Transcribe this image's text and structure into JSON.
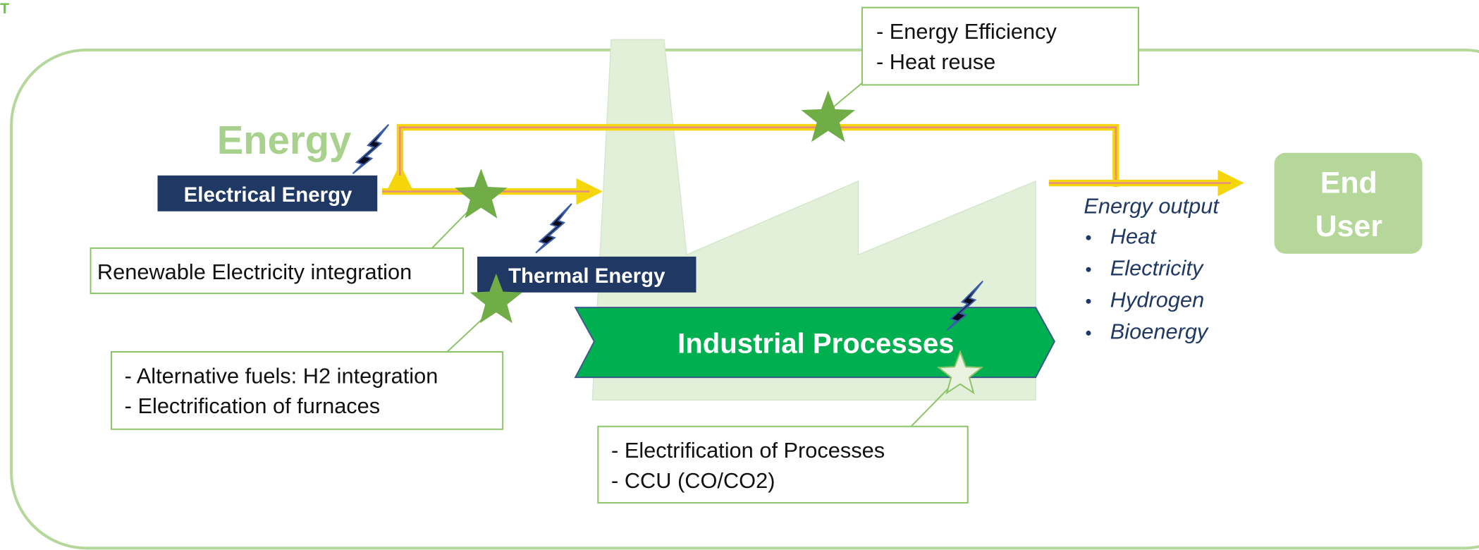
{
  "corner_mark": "T",
  "title": "Energy",
  "inputs": {
    "electrical": "Electrical Energy",
    "thermal": "Thermal Energy"
  },
  "process": "Industrial Processes",
  "end_user": [
    "End",
    "User"
  ],
  "output": {
    "heading": "Energy output",
    "items": [
      "Heat",
      "Electricity",
      "Hydrogen",
      "Bioenergy"
    ]
  },
  "callouts": {
    "efficiency": [
      "- Energy Efficiency",
      "- Heat reuse"
    ],
    "renewable": [
      "Renewable Electricity integration"
    ],
    "fuels": [
      "- Alternative fuels: H2 integration",
      "- Electrification of furnaces"
    ],
    "processes": [
      "- Electrification of Processes",
      "- CCU (CO/CO2)"
    ]
  }
}
